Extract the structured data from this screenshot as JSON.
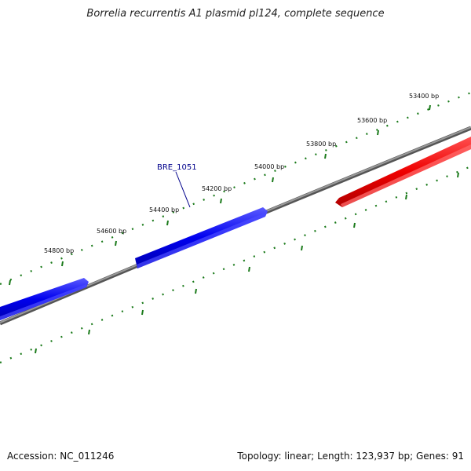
{
  "title": "Borrelia recurrentis A1 plasmid pl124, complete sequence",
  "footer": {
    "accession": "Accession: NC_011246",
    "summary": "Topology: linear; Length: 123,937 bp; Genes: 91"
  },
  "scale": {
    "tick_labels": [
      "53400 bp",
      "53600 bp",
      "53800 bp",
      "54000 bp",
      "54200 bp",
      "54400 bp",
      "54600 bp",
      "54800 bp"
    ]
  },
  "genes": [
    {
      "label": "",
      "strand": "forward",
      "color": "#0000ee"
    },
    {
      "label": "BRE_1051",
      "strand": "forward",
      "color": "#0000ee"
    },
    {
      "label": "",
      "strand": "reverse",
      "color": "#ee0000"
    }
  ],
  "colors": {
    "forward_gene": "#0000ee",
    "reverse_gene": "#ee0000",
    "backbone": "#808080",
    "ticks": "#1a7a1a",
    "gene_label": "#00008b"
  }
}
